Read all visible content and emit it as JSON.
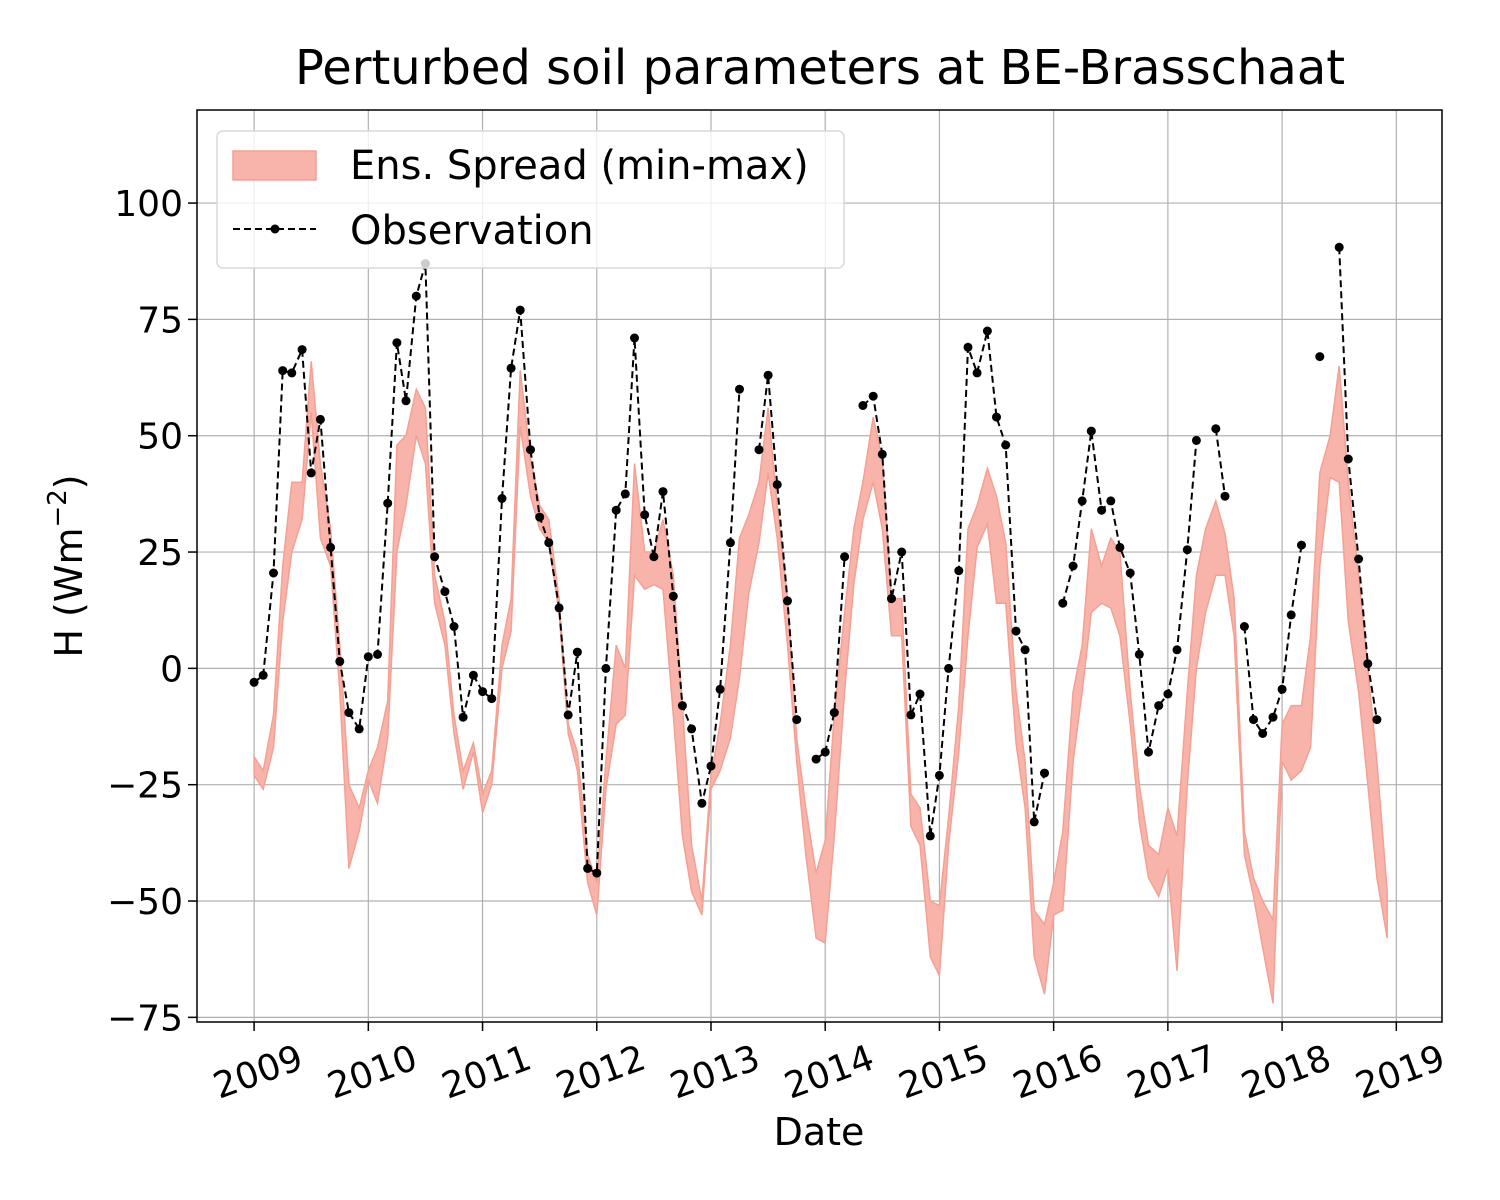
{
  "chart_data": {
    "type": "line",
    "title": "Perturbed soil parameters at BE-Brasschaat",
    "xlabel": "Date",
    "ylabel_main": "H  (Wm",
    "ylabel_sup": "−2",
    "ylabel_close": ")",
    "xlim": [
      2008.5,
      2019.4
    ],
    "ylim": [
      -76,
      120
    ],
    "x_ticks": [
      2009,
      2010,
      2011,
      2012,
      2013,
      2014,
      2015,
      2016,
      2017,
      2018,
      2019
    ],
    "x_tick_labels": [
      "2009",
      "2010",
      "2011",
      "2012",
      "2013",
      "2014",
      "2015",
      "2016",
      "2017",
      "2018",
      "2019"
    ],
    "y_ticks": [
      -75,
      -50,
      -25,
      0,
      25,
      50,
      75,
      100
    ],
    "y_tick_labels": [
      "−75",
      "−50",
      "−25",
      "0",
      "25",
      "50",
      "75",
      "100"
    ],
    "grid": true,
    "legend": {
      "position": "top-left",
      "entries": [
        "Ens. Spread (min-max)",
        "Observation"
      ]
    },
    "colors": {
      "spread_fill": "#f8b4aa",
      "spread_edge": "#f4a093",
      "observation": "#000000",
      "grid": "#b0b0b0"
    },
    "observation": [
      [
        2009.0,
        -3
      ],
      [
        2009.08,
        -1.5
      ],
      [
        2009.17,
        20.5
      ],
      [
        2009.25,
        64
      ],
      [
        2009.33,
        63.5
      ],
      [
        2009.42,
        68.5
      ],
      [
        2009.5,
        42
      ],
      [
        2009.58,
        53.5
      ],
      [
        2009.67,
        26
      ],
      [
        2009.75,
        1.5
      ],
      [
        2009.83,
        -9.5
      ],
      [
        2009.92,
        -13
      ],
      [
        2010.0,
        2.5
      ],
      [
        2010.08,
        3
      ],
      [
        2010.17,
        35.5
      ],
      [
        2010.25,
        70
      ],
      [
        2010.33,
        57.5
      ],
      [
        2010.42,
        80
      ],
      [
        2010.5,
        87
      ],
      [
        2010.58,
        24
      ],
      [
        2010.67,
        16.5
      ],
      [
        2010.75,
        9
      ],
      [
        2010.83,
        -10.5
      ],
      [
        2010.92,
        -1.5
      ],
      [
        2011.0,
        -5
      ],
      [
        2011.08,
        -6.5
      ],
      [
        2011.17,
        36.5
      ],
      [
        2011.25,
        64.5
      ],
      [
        2011.33,
        77
      ],
      [
        2011.42,
        47
      ],
      [
        2011.5,
        32.5
      ],
      [
        2011.58,
        27
      ],
      [
        2011.67,
        13
      ],
      [
        2011.75,
        -10
      ],
      [
        2011.83,
        3.5
      ],
      [
        2011.92,
        -43
      ],
      [
        2012.0,
        -44
      ],
      [
        2012.08,
        0
      ],
      [
        2012.17,
        34
      ],
      [
        2012.25,
        37.5
      ],
      [
        2012.33,
        71
      ],
      [
        2012.42,
        33
      ],
      [
        2012.5,
        24
      ],
      [
        2012.58,
        38
      ],
      [
        2012.67,
        15.5
      ],
      [
        2012.75,
        -8
      ],
      [
        2012.83,
        -13
      ],
      [
        2012.92,
        -29
      ],
      [
        2013.0,
        -21
      ],
      [
        2013.08,
        -4.5
      ],
      [
        2013.17,
        27
      ],
      [
        2013.25,
        60
      ],
      [
        null,
        null
      ],
      [
        2013.42,
        47
      ],
      [
        2013.5,
        63
      ],
      [
        2013.58,
        39.5
      ],
      [
        2013.67,
        14.5
      ],
      [
        2013.75,
        -11
      ],
      [
        null,
        null
      ],
      [
        2013.92,
        -19.5
      ],
      [
        2014.0,
        -18
      ],
      [
        2014.08,
        -9.5
      ],
      [
        2014.17,
        24
      ],
      [
        null,
        null
      ],
      [
        2014.33,
        56.5
      ],
      [
        2014.42,
        58.5
      ],
      [
        2014.5,
        46
      ],
      [
        2014.58,
        15
      ],
      [
        2014.67,
        25
      ],
      [
        2014.75,
        -10
      ],
      [
        2014.83,
        -5.5
      ],
      [
        2014.92,
        -36
      ],
      [
        2015.0,
        -23
      ],
      [
        2015.08,
        0
      ],
      [
        2015.17,
        21
      ],
      [
        2015.25,
        69
      ],
      [
        2015.33,
        63.5
      ],
      [
        2015.42,
        72.5
      ],
      [
        2015.5,
        54
      ],
      [
        2015.58,
        48
      ],
      [
        2015.67,
        8
      ],
      [
        2015.75,
        4
      ],
      [
        2015.83,
        -33
      ],
      [
        2015.92,
        -22.5
      ],
      [
        null,
        null
      ],
      [
        2016.08,
        14
      ],
      [
        2016.17,
        22
      ],
      [
        2016.25,
        36
      ],
      [
        2016.33,
        51
      ],
      [
        2016.42,
        34
      ],
      [
        2016.5,
        36
      ],
      [
        2016.58,
        26
      ],
      [
        2016.67,
        20.5
      ],
      [
        2016.75,
        3
      ],
      [
        2016.83,
        -18
      ],
      [
        2016.92,
        -8
      ],
      [
        2017.0,
        -5.5
      ],
      [
        2017.08,
        4
      ],
      [
        2017.17,
        25.5
      ],
      [
        2017.25,
        49
      ],
      [
        null,
        null
      ],
      [
        2017.42,
        51.5
      ],
      [
        2017.5,
        37
      ],
      [
        null,
        null
      ],
      [
        2017.67,
        9
      ],
      [
        2017.75,
        -11
      ],
      [
        2017.83,
        -14
      ],
      [
        2017.92,
        -10.5
      ],
      [
        2018.0,
        -4.5
      ],
      [
        2018.08,
        11.5
      ],
      [
        2018.17,
        26.5
      ],
      [
        null,
        null
      ],
      [
        2018.33,
        67
      ],
      [
        null,
        null
      ],
      [
        2018.5,
        90.5
      ],
      [
        2018.58,
        45
      ],
      [
        2018.67,
        23.5
      ],
      [
        2018.75,
        1
      ],
      [
        2018.83,
        -11
      ],
      [
        null,
        null
      ]
    ],
    "spread_x": [
      2009.0,
      2009.08,
      2009.17,
      2009.25,
      2009.33,
      2009.42,
      2009.5,
      2009.58,
      2009.67,
      2009.75,
      2009.83,
      2009.92,
      2010.0,
      2010.08,
      2010.17,
      2010.25,
      2010.33,
      2010.42,
      2010.5,
      2010.58,
      2010.67,
      2010.75,
      2010.83,
      2010.92,
      2011.0,
      2011.08,
      2011.17,
      2011.25,
      2011.33,
      2011.42,
      2011.5,
      2011.58,
      2011.67,
      2011.75,
      2011.83,
      2011.92,
      2012.0,
      2012.08,
      2012.17,
      2012.25,
      2012.33,
      2012.42,
      2012.5,
      2012.58,
      2012.67,
      2012.75,
      2012.83,
      2012.92,
      2013.0,
      2013.08,
      2013.17,
      2013.25,
      2013.33,
      2013.42,
      2013.5,
      2013.58,
      2013.67,
      2013.75,
      2013.83,
      2013.92,
      2014.0,
      2014.08,
      2014.17,
      2014.25,
      2014.33,
      2014.42,
      2014.5,
      2014.58,
      2014.67,
      2014.75,
      2014.83,
      2014.92,
      2015.0,
      2015.08,
      2015.17,
      2015.25,
      2015.33,
      2015.42,
      2015.5,
      2015.58,
      2015.67,
      2015.75,
      2015.83,
      2015.92,
      2016.0,
      2016.08,
      2016.17,
      2016.25,
      2016.33,
      2016.42,
      2016.5,
      2016.58,
      2016.67,
      2016.75,
      2016.83,
      2016.92,
      2017.0,
      2017.08,
      2017.17,
      2017.25,
      2017.33,
      2017.42,
      2017.5,
      2017.58,
      2017.67,
      2017.75,
      2017.83,
      2017.92,
      2018.0,
      2018.08,
      2018.17,
      2018.25,
      2018.33,
      2018.42,
      2018.5,
      2018.58,
      2018.67,
      2018.75,
      2018.83,
      2018.92
    ],
    "spread_max": [
      -19,
      -22,
      -10,
      22,
      40,
      40,
      66,
      44,
      30,
      5,
      -25,
      -30,
      -22,
      -17,
      -7,
      48,
      50,
      60,
      56,
      20,
      10,
      -10,
      -22,
      -16,
      -27,
      -22,
      5,
      15,
      64,
      45,
      35,
      32,
      15,
      -12,
      -18,
      -40,
      -46,
      -20,
      5,
      0,
      44,
      25,
      25,
      32,
      20,
      -8,
      -38,
      -50,
      -23,
      -12,
      5,
      28,
      33,
      40,
      56,
      35,
      15,
      -15,
      -30,
      -44,
      -37,
      -10,
      12,
      30,
      40,
      54,
      45,
      15,
      15,
      -27,
      -30,
      -50,
      -51,
      -32,
      -8,
      30,
      35,
      43,
      37,
      27,
      -5,
      -20,
      -52,
      -55,
      -46,
      -35,
      -5,
      5,
      30,
      22,
      28,
      25,
      -5,
      -25,
      -38,
      -40,
      -30,
      -36,
      -5,
      20,
      30,
      36,
      29,
      15,
      -35,
      -45,
      -50,
      -54,
      -12,
      -8,
      -8,
      7,
      42,
      50,
      65,
      40,
      20,
      0,
      -20,
      -48
    ],
    "spread_min": [
      -23,
      -26,
      -17,
      10,
      25,
      32,
      55,
      28,
      22,
      -5,
      -43,
      -35,
      -24,
      -29,
      -15,
      25,
      35,
      50,
      44,
      14,
      5,
      -14,
      -26,
      -18,
      -31,
      -25,
      0,
      8,
      52,
      37,
      30,
      27,
      12,
      -14,
      -22,
      -46,
      -53,
      -26,
      -12,
      -10,
      20,
      17,
      18,
      17,
      -10,
      -36,
      -48,
      -53,
      -26,
      -22,
      -15,
      -2,
      16,
      27,
      42,
      28,
      5,
      -20,
      -40,
      -58,
      -59,
      -36,
      -5,
      18,
      32,
      40,
      30,
      7,
      7,
      -34,
      -38,
      -62,
      -66,
      -38,
      -18,
      7,
      26,
      31,
      14,
      14,
      -16,
      -30,
      -62,
      -70,
      -53,
      -52,
      -20,
      -5,
      12,
      14,
      13,
      7,
      -12,
      -33,
      -45,
      -49,
      -43,
      -65,
      -25,
      0,
      12,
      20,
      20,
      7,
      -40,
      -49,
      -60,
      -72,
      -20,
      -24,
      -22,
      -17,
      22,
      41,
      40,
      10,
      -5,
      -25,
      -45,
      -58
    ]
  }
}
